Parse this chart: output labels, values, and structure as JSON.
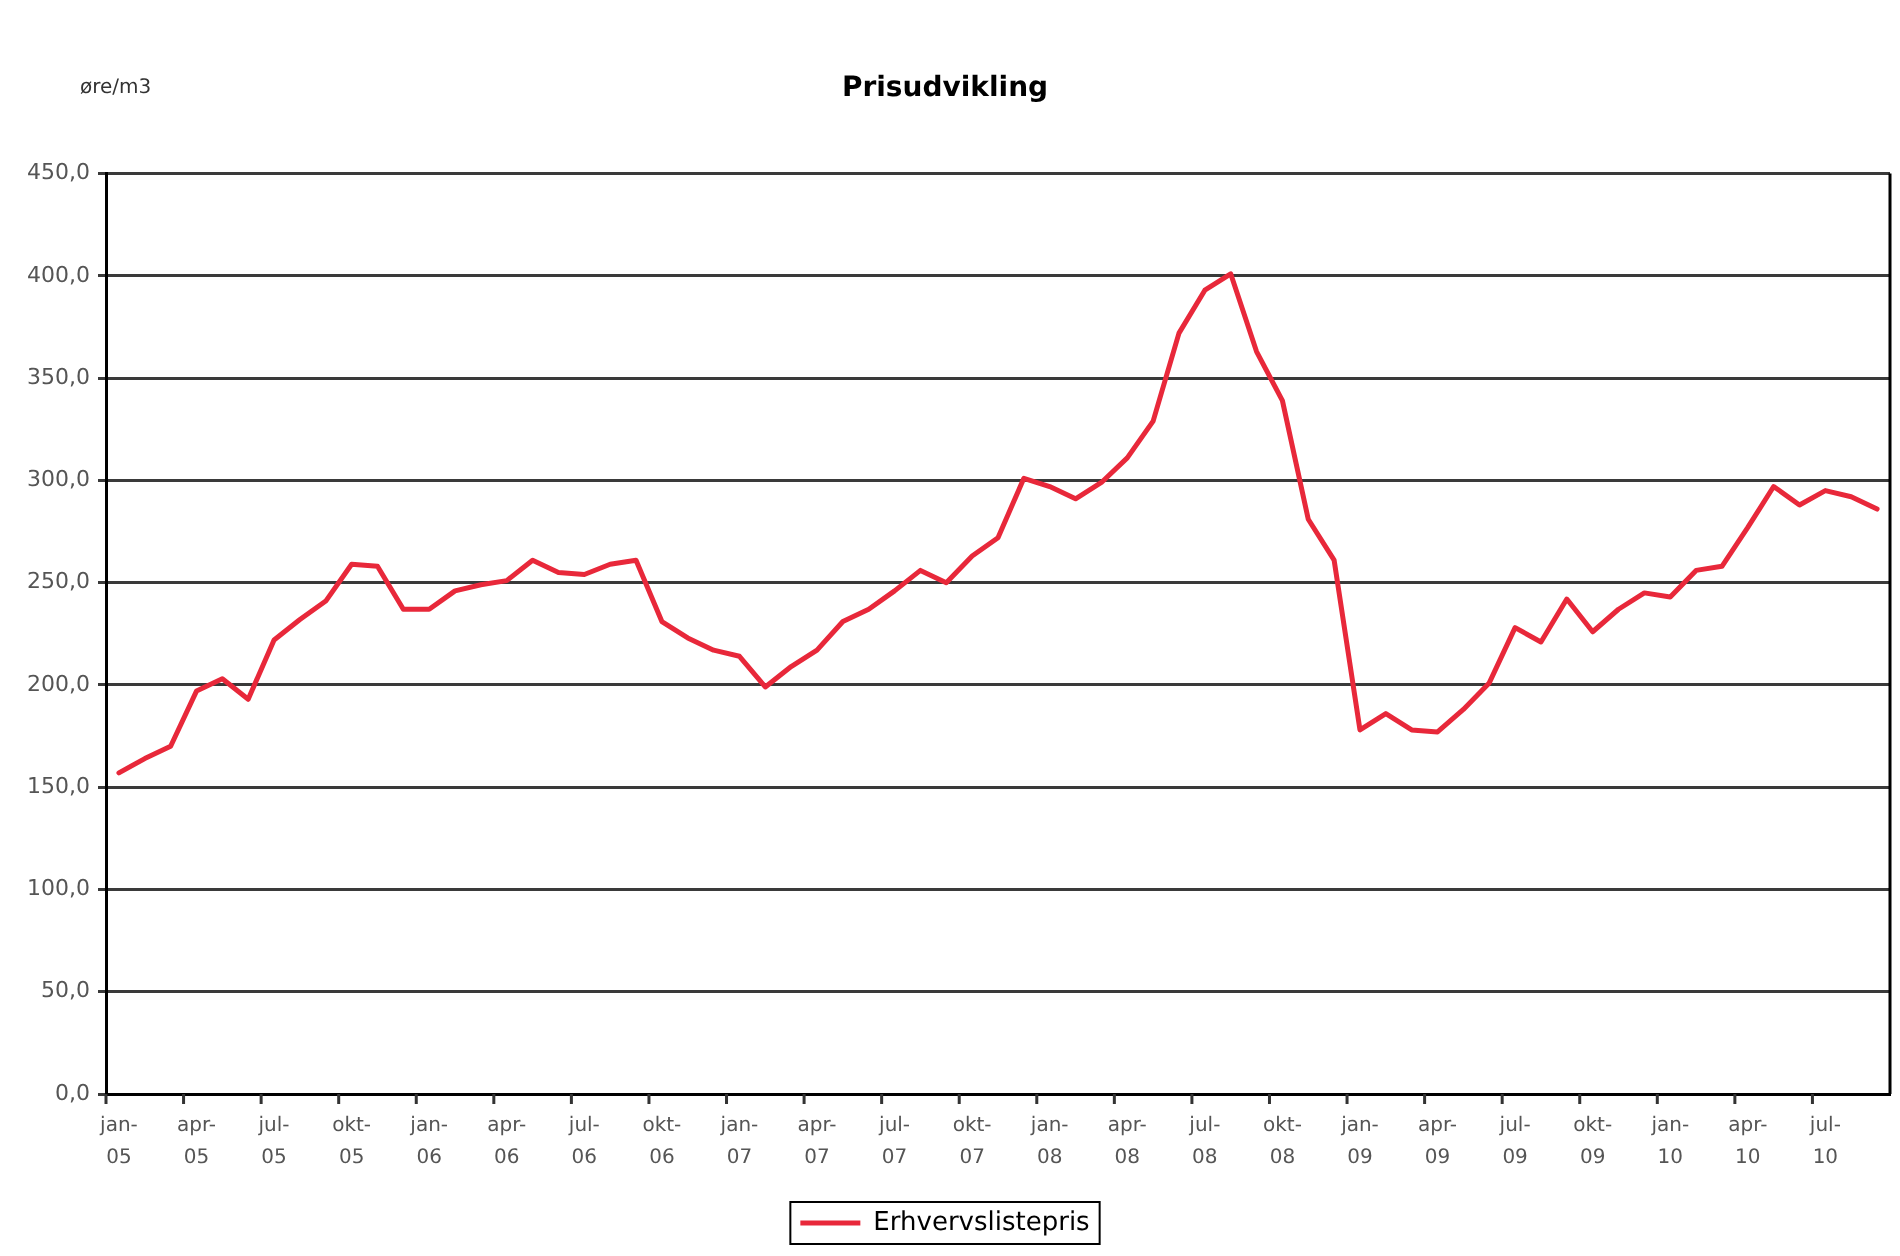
{
  "chart_data": {
    "type": "line",
    "title": "Prisudvikling",
    "ylabel": "øre/m3",
    "categories": [
      "jan-05",
      null,
      null,
      "apr-05",
      null,
      null,
      "jul-05",
      null,
      null,
      "okt-05",
      null,
      null,
      "jan-06",
      null,
      null,
      "apr-06",
      null,
      null,
      "jul-06",
      null,
      null,
      "okt-06",
      null,
      null,
      "jan-07",
      null,
      null,
      "apr-07",
      null,
      null,
      "jul-07",
      null,
      null,
      "okt-07",
      null,
      null,
      "jan-08",
      null,
      null,
      "apr-08",
      null,
      null,
      "jul-08",
      null,
      null,
      "okt-08",
      null,
      null,
      "jan-09",
      null,
      null,
      "apr-09",
      null,
      null,
      "jul-09",
      null,
      null,
      "okt-09",
      null,
      null,
      "jan-10",
      null,
      null,
      "apr-10",
      null,
      null,
      "jul-10",
      null,
      null
    ],
    "series": [
      {
        "name": "Erhvervslistepris",
        "color": "#e8283a",
        "values": [
          157,
          164,
          170,
          197,
          203,
          193,
          222,
          232,
          241,
          259,
          258,
          237,
          237,
          246,
          249,
          251,
          261,
          255,
          254,
          259,
          261,
          231,
          223,
          217,
          214,
          199,
          209,
          217,
          231,
          237,
          246,
          256,
          250,
          263,
          272,
          301,
          297,
          291,
          299,
          311,
          329,
          372,
          393,
          401,
          363,
          339,
          281,
          261,
          178,
          186,
          178,
          177,
          188,
          201,
          228,
          221,
          242,
          226,
          237,
          245,
          243,
          256,
          258,
          277,
          297,
          288,
          295,
          292,
          286
        ]
      }
    ],
    "ylim": [
      0,
      450
    ],
    "yticks": [
      {
        "value": 0,
        "label": "0,0"
      },
      {
        "value": 50,
        "label": "50,0"
      },
      {
        "value": 100,
        "label": "100,0"
      },
      {
        "value": 150,
        "label": "150,0"
      },
      {
        "value": 200,
        "label": "200,0"
      },
      {
        "value": 250,
        "label": "250,0"
      },
      {
        "value": 300,
        "label": "300,0"
      },
      {
        "value": 350,
        "label": "350,0"
      },
      {
        "value": 400,
        "label": "400,0"
      },
      {
        "value": 450,
        "label": "450,0"
      }
    ],
    "grid": "y",
    "legend": "bottom",
    "marker": "none",
    "line_style": "solid"
  }
}
